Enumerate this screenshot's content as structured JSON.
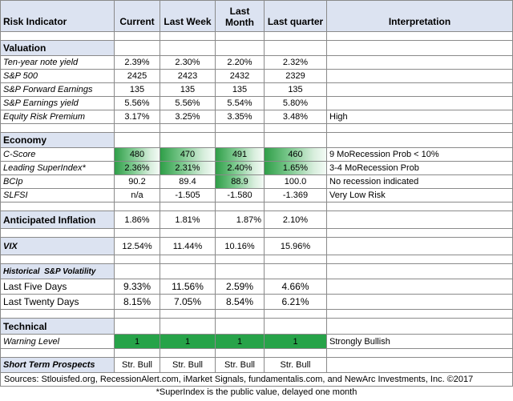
{
  "header": {
    "risk_indicator": "Risk Indicator",
    "current": "Current",
    "last_week": "Last Week",
    "last_month": "Last Month",
    "last_quarter": "Last quarter",
    "interpretation": "Interpretation"
  },
  "valuation": {
    "title": "Valuation",
    "rows": [
      {
        "label": "Ten-year note yield",
        "current": "2.39%",
        "last_week": "2.30%",
        "last_month": "2.20%",
        "last_quarter": "2.32%",
        "interp": ""
      },
      {
        "label": "S&P 500",
        "current": "2425",
        "last_week": "2423",
        "last_month": "2432",
        "last_quarter": "2329",
        "interp": ""
      },
      {
        "label": "S&P Forward Earnings",
        "current": "135",
        "last_week": "135",
        "last_month": "135",
        "last_quarter": "135",
        "interp": ""
      },
      {
        "label": "S&P Earnings yield",
        "current": "5.56%",
        "last_week": "5.56%",
        "last_month": "5.54%",
        "last_quarter": "5.80%",
        "interp": ""
      },
      {
        "label": "Equity Risk Premium",
        "current": "3.17%",
        "last_week": "3.25%",
        "last_month": "3.35%",
        "last_quarter": "3.48%",
        "interp": "High"
      }
    ]
  },
  "economy": {
    "title": "Economy",
    "rows": [
      {
        "label": "C-Score",
        "current": "480",
        "last_week": "470",
        "last_month": "491",
        "last_quarter": "460",
        "interp": "9 MoRecession Prob < 10%"
      },
      {
        "label": "Leading SuperIndex*",
        "current": "2.36%",
        "last_week": "2.31%",
        "last_month": "2.40%",
        "last_quarter": "1.65%",
        "interp": "3-4 MoRecession Prob"
      },
      {
        "label": "BCIp",
        "current": "90.2",
        "last_week": "89.4",
        "last_month": "88.9",
        "last_quarter": "100.0",
        "interp": "No recession indicated"
      },
      {
        "label": "SLFSI",
        "current": "n/a",
        "last_week": "-1.505",
        "last_month": "-1.580",
        "last_quarter": "-1.369",
        "interp": "Very Low Risk"
      }
    ]
  },
  "inflation": {
    "label": "Anticipated Inflation",
    "current": "1.86%",
    "last_week": "1.81%",
    "last_month": "1.87%",
    "last_quarter": "2.10%"
  },
  "vix": {
    "label": "VIX",
    "current": "12.54%",
    "last_week": "11.44%",
    "last_month": "10.16%",
    "last_quarter": "15.96%"
  },
  "volatility": {
    "title": "Historical  S&P Volatility",
    "rows": [
      {
        "label": "Last Five Days",
        "current": "9.33%",
        "last_week": "11.56%",
        "last_month": "2.59%",
        "last_quarter": "4.66%"
      },
      {
        "label": "Last Twenty Days",
        "current": "8.15%",
        "last_week": "7.05%",
        "last_month": "8.54%",
        "last_quarter": "6.21%"
      }
    ]
  },
  "technical": {
    "title": "Technical",
    "row": {
      "label": "Warning Level",
      "current": "1",
      "last_week": "1",
      "last_month": "1",
      "last_quarter": "1",
      "interp": "Strongly Bullish"
    }
  },
  "short_term": {
    "label": "Short Term Prospects",
    "current": "Str. Bull",
    "last_week": "Str. Bull",
    "last_month": "Str. Bull",
    "last_quarter": "Str. Bull"
  },
  "sources": "Sources: Stlouisfed.org, RecessionAlert.com, iMarket Signals, fundamentalis.com, and NewArc Investments, Inc. ©2017",
  "footnote": "*SuperIndex is the public value, delayed one month",
  "colors": {
    "header_bg": "#dce3f1",
    "green_solid": "#27a349",
    "green_gradient_start": "#2f9e48"
  }
}
